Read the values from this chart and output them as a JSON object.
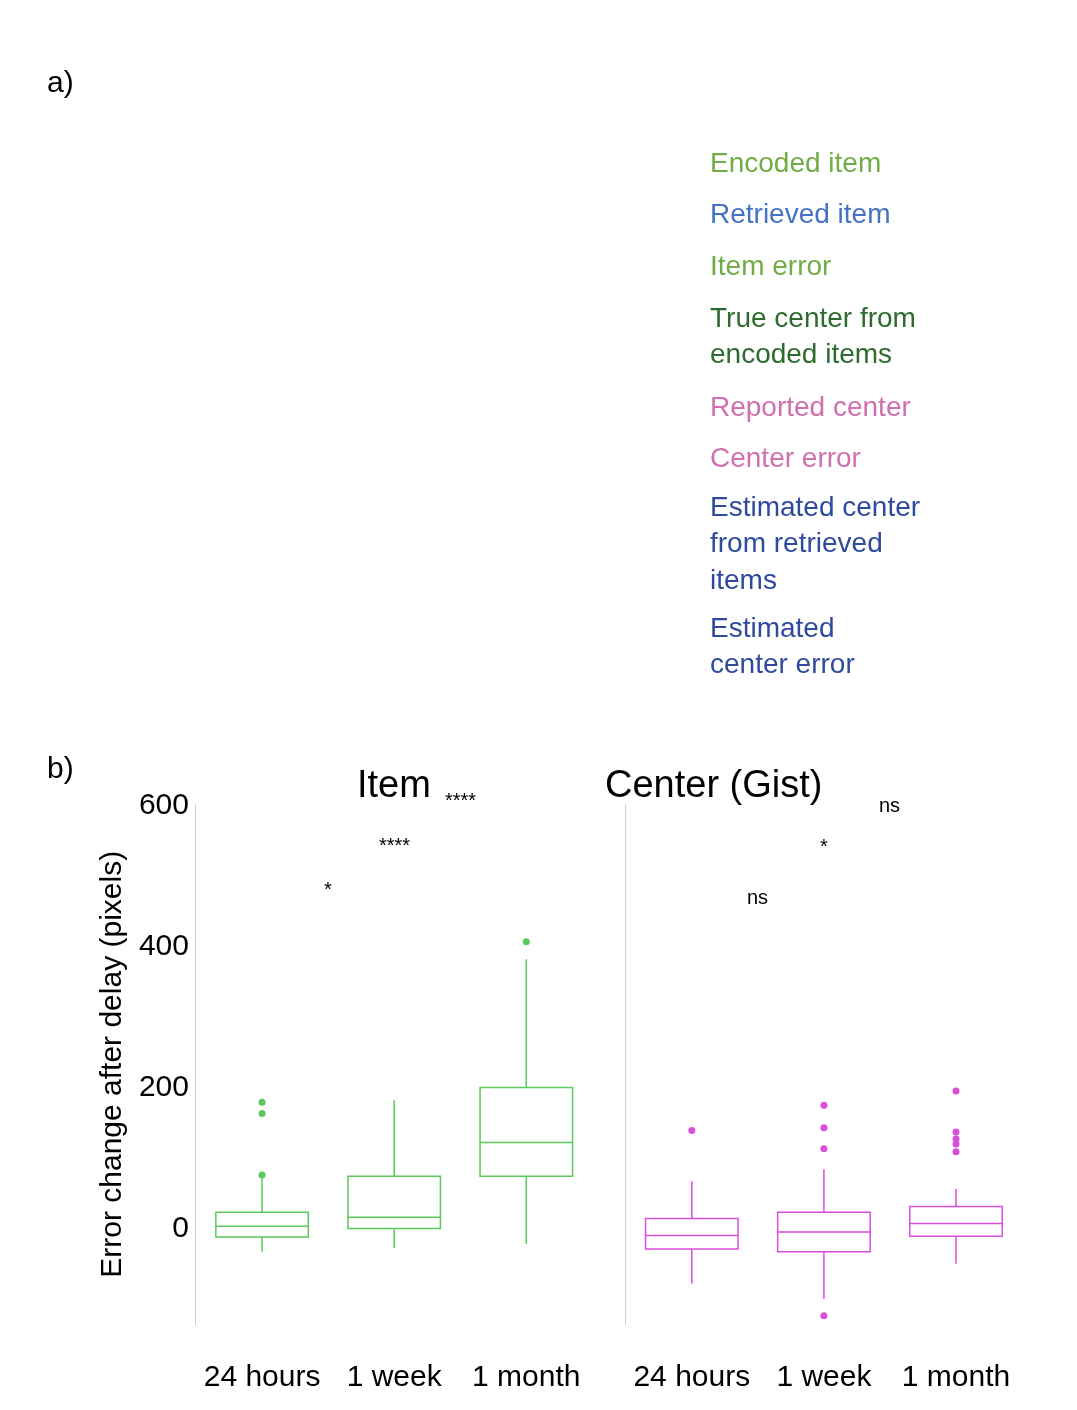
{
  "chart_data": [
    {
      "type": "other",
      "annotations": [
        "a)",
        "Encoded item",
        "Retrieved item",
        "Item error",
        "True center from\nencoded items",
        "Reported center",
        "Center error",
        "Estimated center\nfrom retrieved\nitems",
        "Estimated\ncenter error"
      ],
      "colors": [
        "#000000",
        "#70ad47",
        "#4472c4",
        "#70ad47",
        "#2e6b2e",
        "#d070b0",
        "#d070b0",
        "#2f4b9e",
        "#2f4b9e"
      ]
    },
    {
      "type": "box",
      "title": "Item",
      "ylabel": "Error change after delay (pixels)",
      "categories": [
        "24 hours",
        "1 week",
        "1 month"
      ],
      "series": [
        {
          "color": "#5cc95c",
          "boxes": [
            {
              "low": -36,
              "q1": -15,
              "median": 0,
              "q3": 20,
              "high": 73,
              "outliers": [
                73,
                160,
                176
              ]
            },
            {
              "low": -31,
              "q1": -3,
              "median": 13,
              "q3": 71,
              "high": 179
            },
            {
              "low": -25,
              "q1": 71,
              "median": 119,
              "q3": 197,
              "high": 379,
              "outliers": [
                404
              ]
            }
          ]
        }
      ],
      "ylim": [
        -140,
        600
      ],
      "yticks": [
        0,
        200,
        400,
        600
      ],
      "annotations": [
        "b)",
        "****",
        "****",
        "*"
      ]
    },
    {
      "type": "box",
      "title": "Center (Gist)",
      "categories": [
        "24 hours",
        "1 week",
        "1 month"
      ],
      "series": [
        {
          "color": "#d94fd9",
          "boxes": [
            {
              "low": -81,
              "q1": -32,
              "median": -13,
              "q3": 11,
              "high": 64,
              "outliers": [
                136
              ]
            },
            {
              "low": -103,
              "q1": -36,
              "median": -8,
              "q3": 20,
              "high": 81,
              "outliers": [
                172,
                140,
                110,
                -127
              ]
            },
            {
              "low": -53,
              "q1": -14,
              "median": 4,
              "q3": 28,
              "high": 53,
              "outliers": [
                192,
                134,
                124,
                117,
                106
              ]
            }
          ]
        }
      ],
      "ylim": [
        -140,
        600
      ],
      "yticks": [
        0,
        200,
        400,
        600
      ],
      "tick_labels": "x",
      "annotations": [
        "ns",
        "*",
        "ns"
      ]
    }
  ]
}
